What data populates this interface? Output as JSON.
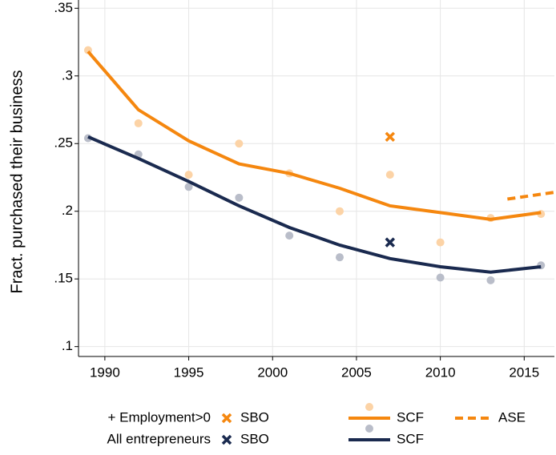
{
  "chart_data": {
    "type": "line",
    "y_label": "Fract. purchased their business",
    "xlim": [
      1988.43,
      2016.8
    ],
    "ylim": [
      0.0927,
      0.3561
    ],
    "xticks": [
      1990,
      1995,
      2000,
      2005,
      2010,
      2015
    ],
    "yticks": [
      {
        "value": 0.1,
        "label": ".1"
      },
      {
        "value": 0.15,
        "label": ".15"
      },
      {
        "value": 0.2,
        "label": ".2"
      },
      {
        "value": 0.25,
        "label": ".25"
      },
      {
        "value": 0.3,
        "label": ".3"
      },
      {
        "value": 0.35,
        "label": ".35"
      }
    ],
    "grid": true,
    "groups": [
      {
        "label": "+ Employment>0",
        "series": [
          {
            "name": "SBO",
            "style": "cross",
            "color": "#f5870f",
            "x": [
              2007
            ],
            "values": [
              0.255
            ]
          },
          {
            "style": "dots",
            "color": "#fcd3a6",
            "x": [
              1989,
              1992,
              1995,
              1998,
              2001,
              2004,
              2007,
              2010,
              2013,
              2016
            ],
            "values": [
              0.319,
              0.265,
              0.227,
              0.25,
              0.228,
              0.2,
              0.227,
              0.177,
              0.195,
              0.198
            ]
          },
          {
            "name": "SCF",
            "style": "line",
            "color": "#f5870f",
            "x": [
              1989,
              1992,
              1995,
              1998,
              2001,
              2004,
              2007,
              2010,
              2013,
              2016
            ],
            "values": [
              0.318,
              0.275,
              0.252,
              0.235,
              0.228,
              0.217,
              0.204,
              0.199,
              0.194,
              0.199
            ]
          },
          {
            "name": "ASE",
            "style": "dashed",
            "color": "#f5870f",
            "x": [
              2014,
              2016.8
            ],
            "values": [
              0.209,
              0.214
            ]
          }
        ]
      },
      {
        "label": "All entrepreneurs",
        "series": [
          {
            "name": "SBO",
            "style": "cross",
            "color": "#1a2a4f",
            "x": [
              2007
            ],
            "values": [
              0.177
            ]
          },
          {
            "style": "dots",
            "color": "#b9bdc9",
            "x": [
              1989,
              1992,
              1995,
              1998,
              2001,
              2004,
              2007,
              2010,
              2013,
              2016
            ],
            "values": [
              0.254,
              0.242,
              0.218,
              0.21,
              0.182,
              0.166,
              null,
              0.151,
              0.149,
              0.16
            ]
          },
          {
            "name": "SCF",
            "style": "line",
            "color": "#1a2a4f",
            "x": [
              1989,
              1992,
              1995,
              1998,
              2001,
              2004,
              2007,
              2010,
              2013,
              2016
            ],
            "values": [
              0.255,
              0.239,
              0.222,
              0.204,
              0.188,
              0.175,
              0.165,
              0.159,
              0.155,
              0.159
            ]
          }
        ]
      }
    ]
  }
}
